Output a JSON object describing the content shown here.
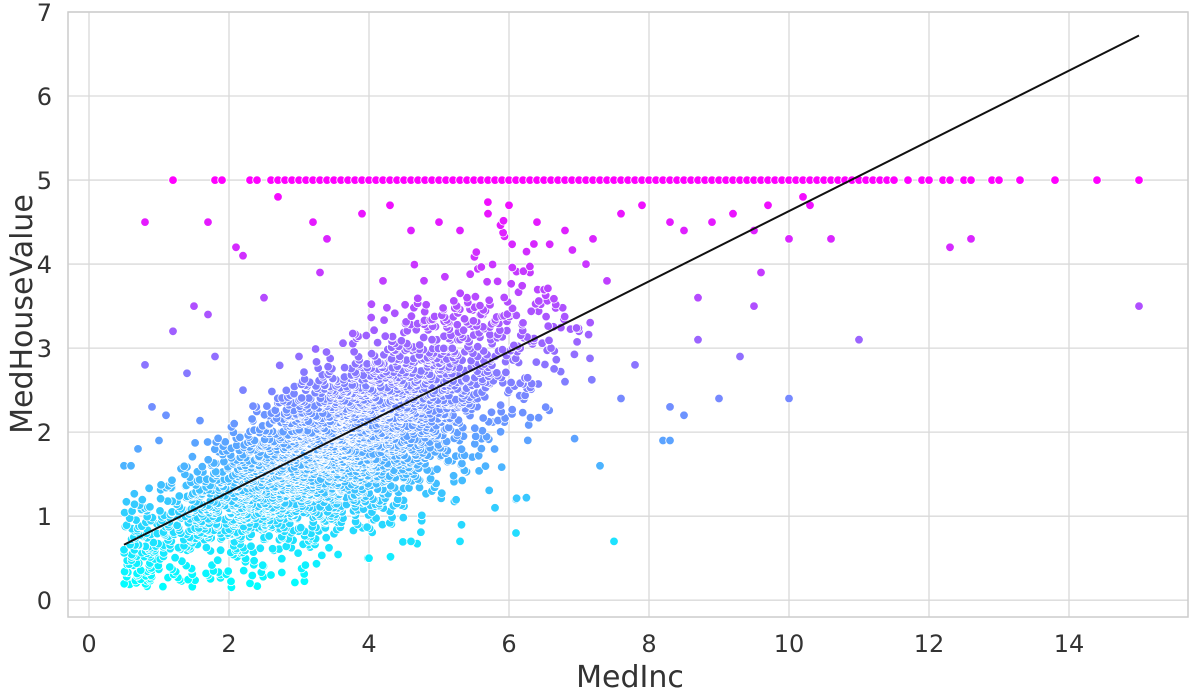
{
  "chart_data": {
    "type": "scatter",
    "title": "",
    "xlabel": "MedInc",
    "ylabel": "MedHouseValue",
    "xlim": [
      -0.3,
      15.7
    ],
    "ylim": [
      -0.2,
      7.0
    ],
    "xticks": [
      0,
      2,
      4,
      6,
      8,
      10,
      12,
      14
    ],
    "yticks": [
      0,
      1,
      2,
      3,
      4,
      5,
      6,
      7
    ],
    "grid": true,
    "legend": "none",
    "colormap": {
      "name": "cool",
      "low": "#00ffff",
      "high": "#ff00ff",
      "vmin": 0.15,
      "vmax": 5.0
    },
    "regression_line": {
      "color": "#111111",
      "x": [
        0.5,
        15.0
      ],
      "y": [
        0.66,
        6.72
      ]
    },
    "cap_value": 5.0,
    "cap_x": [
      1.2,
      1.8,
      1.9,
      2.3,
      2.4,
      2.6,
      2.7,
      2.8,
      2.9,
      3.0,
      3.1,
      3.2,
      3.3,
      3.4,
      3.5,
      3.6,
      3.7,
      3.8,
      3.9,
      4.0,
      4.1,
      4.2,
      4.3,
      4.4,
      4.5,
      4.6,
      4.7,
      4.8,
      4.9,
      5.0,
      5.1,
      5.2,
      5.3,
      5.4,
      5.5,
      5.6,
      5.7,
      5.8,
      5.9,
      6.0,
      6.1,
      6.2,
      6.3,
      6.4,
      6.5,
      6.6,
      6.7,
      6.8,
      6.9,
      7.0,
      7.1,
      7.2,
      7.3,
      7.4,
      7.5,
      7.6,
      7.7,
      7.8,
      7.9,
      8.0,
      8.1,
      8.2,
      8.3,
      8.4,
      8.5,
      8.6,
      8.7,
      8.8,
      8.9,
      9.0,
      9.1,
      9.2,
      9.3,
      9.4,
      9.5,
      9.6,
      9.7,
      9.8,
      9.9,
      10.0,
      10.1,
      10.2,
      10.3,
      10.4,
      10.5,
      10.6,
      10.7,
      10.8,
      10.9,
      11.0,
      11.1,
      11.2,
      11.3,
      11.4,
      11.5,
      11.7,
      11.9,
      12.0,
      12.2,
      12.3,
      12.5,
      12.6,
      12.9,
      13.0,
      13.3,
      13.8,
      14.4,
      15.0
    ],
    "scattered_points": [
      [
        0.8,
        4.5
      ],
      [
        1.7,
        4.5
      ],
      [
        2.2,
        4.1
      ],
      [
        2.1,
        4.2
      ],
      [
        2.7,
        4.8
      ],
      [
        3.2,
        4.5
      ],
      [
        3.4,
        4.3
      ],
      [
        3.9,
        4.6
      ],
      [
        4.3,
        4.7
      ],
      [
        4.6,
        4.4
      ],
      [
        5.0,
        4.5
      ],
      [
        5.3,
        4.4
      ],
      [
        5.7,
        4.6
      ],
      [
        6.0,
        4.7
      ],
      [
        6.4,
        4.5
      ],
      [
        6.8,
        4.4
      ],
      [
        7.2,
        4.3
      ],
      [
        7.6,
        4.6
      ],
      [
        7.9,
        4.7
      ],
      [
        8.3,
        4.5
      ],
      [
        8.5,
        4.4
      ],
      [
        8.9,
        4.5
      ],
      [
        9.2,
        4.6
      ],
      [
        9.5,
        4.4
      ],
      [
        9.7,
        4.7
      ],
      [
        10.2,
        4.8
      ],
      [
        10.3,
        4.7
      ],
      [
        10.0,
        4.3
      ],
      [
        10.6,
        4.3
      ],
      [
        12.3,
        4.2
      ],
      [
        12.6,
        4.3
      ],
      [
        9.6,
        3.9
      ],
      [
        8.7,
        3.6
      ],
      [
        9.5,
        3.5
      ],
      [
        11.0,
        3.1
      ],
      [
        15.0,
        3.5
      ],
      [
        9.3,
        2.9
      ],
      [
        8.7,
        3.1
      ],
      [
        8.3,
        2.3
      ],
      [
        8.5,
        2.2
      ],
      [
        9.0,
        2.4
      ],
      [
        10.0,
        2.4
      ],
      [
        8.2,
        1.9
      ],
      [
        8.3,
        1.9
      ],
      [
        7.8,
        2.8
      ],
      [
        7.6,
        2.4
      ],
      [
        7.3,
        1.6
      ],
      [
        7.5,
        0.7
      ],
      [
        6.1,
        0.8
      ],
      [
        6.1,
        1.2
      ],
      [
        5.8,
        1.1
      ],
      [
        5.3,
        0.7
      ],
      [
        4.6,
        0.7
      ],
      [
        4.0,
        0.5
      ],
      [
        2.3,
        0.2
      ],
      [
        1.7,
        0.3
      ],
      [
        2.6,
        0.3
      ],
      [
        0.5,
        0.6
      ],
      [
        0.5,
        1.6
      ],
      [
        0.6,
        1.6
      ],
      [
        0.8,
        2.8
      ],
      [
        1.2,
        3.2
      ],
      [
        1.5,
        3.5
      ],
      [
        1.7,
        3.4
      ],
      [
        1.8,
        2.9
      ],
      [
        1.4,
        2.7
      ],
      [
        1.1,
        2.2
      ],
      [
        0.9,
        2.3
      ],
      [
        0.7,
        1.8
      ],
      [
        1.0,
        1.9
      ],
      [
        6.2,
        3.3
      ],
      [
        6.6,
        3.0
      ],
      [
        5.4,
        3.6
      ],
      [
        4.2,
        3.8
      ],
      [
        3.3,
        3.9
      ],
      [
        2.5,
        3.6
      ],
      [
        3.0,
        2.9
      ],
      [
        2.2,
        2.5
      ],
      [
        2.8,
        2.1
      ],
      [
        3.6,
        2.4
      ],
      [
        4.4,
        2.6
      ],
      [
        5.2,
        2.2
      ],
      [
        6.0,
        2.5
      ],
      [
        6.8,
        2.6
      ],
      [
        7.0,
        3.2
      ],
      [
        7.4,
        3.8
      ],
      [
        7.1,
        4.0
      ],
      [
        6.3,
        3.9
      ],
      [
        5.6,
        3.4
      ],
      [
        4.9,
        3.1
      ]
    ],
    "cloud": {
      "count": 3600,
      "x_mean": 3.55,
      "x_sd": 1.3,
      "x_min": 0.5,
      "x_max": 7.2,
      "intercept": 0.35,
      "slope": 0.42,
      "y_sd": 0.42,
      "y_min": 0.15
    }
  }
}
